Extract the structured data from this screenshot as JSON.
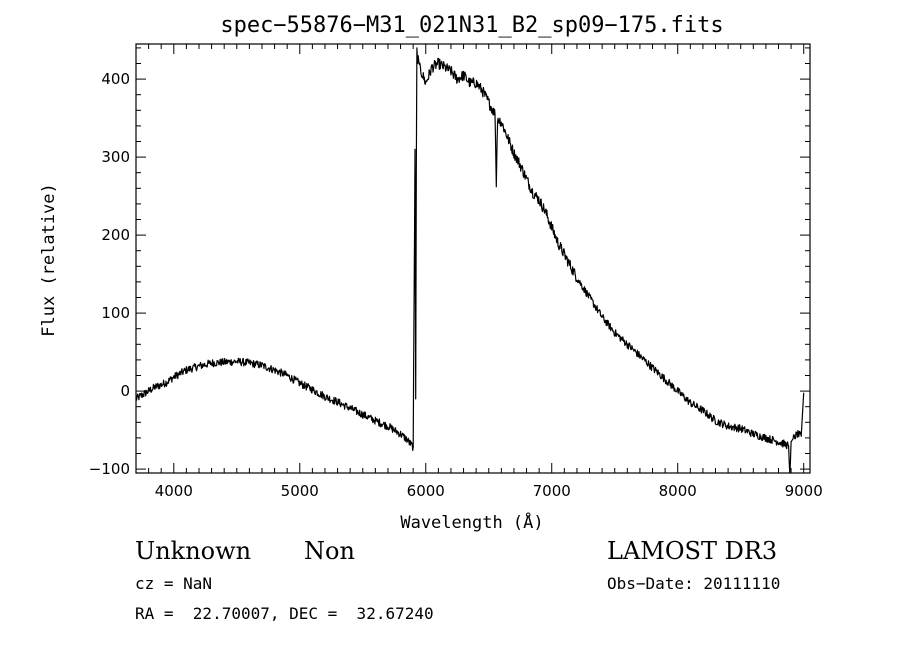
{
  "chart_data": {
    "type": "line",
    "title": "spec−55876−M31_021N31_B2_sp09−175.fits",
    "xlabel": "Wavelength (Å)",
    "ylabel": "Flux (relative)",
    "xlim": [
      3700,
      9050
    ],
    "ylim": [
      -105,
      445
    ],
    "xticks": [
      4000,
      5000,
      6000,
      7000,
      8000,
      9000
    ],
    "yticks": [
      -100,
      0,
      100,
      200,
      300,
      400
    ],
    "xtick_labels": [
      "4000",
      "5000",
      "6000",
      "7000",
      "8000",
      "9000"
    ],
    "ytick_labels": [
      "−100",
      "0",
      "100",
      "200",
      "300",
      "400"
    ],
    "grid": false,
    "series": [
      {
        "name": "spectrum",
        "x": [
          3700,
          3750,
          3800,
          3850,
          3900,
          3950,
          4000,
          4100,
          4200,
          4300,
          4400,
          4500,
          4600,
          4700,
          4800,
          4900,
          5000,
          5100,
          5200,
          5300,
          5400,
          5500,
          5600,
          5700,
          5800,
          5850,
          5900,
          5915,
          5920,
          5925,
          5930,
          5935,
          5940,
          5950,
          6000,
          6050,
          6100,
          6150,
          6200,
          6250,
          6300,
          6350,
          6400,
          6450,
          6500,
          6550,
          6560,
          6570,
          6600,
          6650,
          6700,
          6750,
          6800,
          6850,
          6900,
          6950,
          7000,
          7050,
          7100,
          7150,
          7200,
          7300,
          7400,
          7500,
          7600,
          7700,
          7800,
          7900,
          8000,
          8100,
          8200,
          8300,
          8400,
          8500,
          8600,
          8700,
          8800,
          8850,
          8880,
          8890,
          8900,
          8920,
          8950,
          8980,
          9000
        ],
        "y": [
          -10,
          -5,
          0,
          5,
          8,
          12,
          18,
          27,
          32,
          36,
          37,
          38,
          36,
          33,
          27,
          20,
          10,
          2,
          -7,
          -14,
          -22,
          -30,
          -38,
          -45,
          -55,
          -62,
          -72,
          310,
          -10,
          280,
          440,
          420,
          430,
          415,
          395,
          415,
          420,
          415,
          410,
          400,
          405,
          395,
          395,
          385,
          370,
          355,
          262,
          350,
          345,
          325,
          305,
          290,
          272,
          255,
          245,
          230,
          210,
          190,
          175,
          160,
          145,
          120,
          95,
          75,
          60,
          45,
          30,
          15,
          0,
          -15,
          -25,
          -38,
          -45,
          -48,
          -55,
          -60,
          -65,
          -68,
          -70,
          -110,
          -65,
          -60,
          -55,
          -58,
          -2
        ]
      }
    ]
  },
  "footer": {
    "object_class": "Unknown",
    "subclass": "Non",
    "survey": "LAMOST DR3",
    "cz": "cz = NaN",
    "obs_date": "Obs−Date: 20111110",
    "coords": "RA =  22.70007, DEC =  32.67240"
  }
}
